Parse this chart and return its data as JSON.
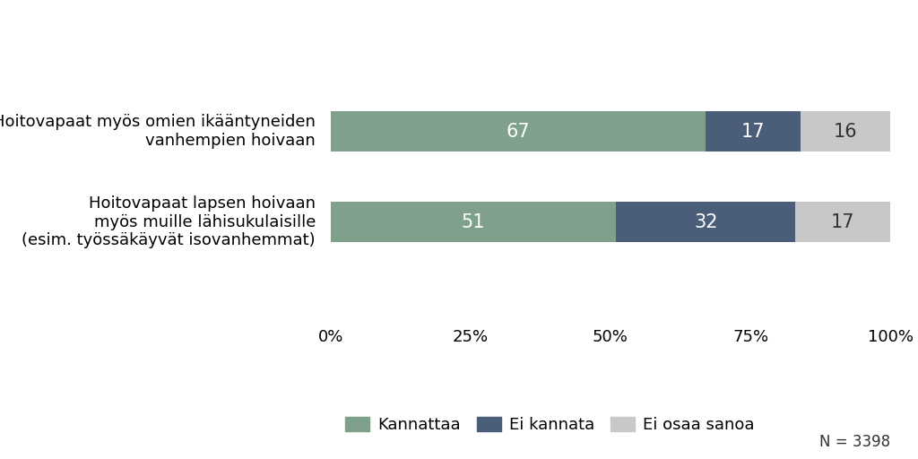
{
  "categories": [
    "Hoitovapaat myös omien ikääntyneiden\nvanhempien hoivaan",
    "Hoitovapaat lapsen hoivaan\nmyös muille lähisukulaisille\n(esim. työssäkäyvät isovanhemmat)"
  ],
  "series": [
    {
      "label": "Kannattaa",
      "values": [
        67,
        51
      ],
      "color": "#7fa08a"
    },
    {
      "label": "Ei kannata",
      "values": [
        17,
        32
      ],
      "color": "#4a5e7a"
    },
    {
      "label": "Ei osaa sanoa",
      "values": [
        16,
        17
      ],
      "color": "#c8c8c8"
    }
  ],
  "bar_labels_color_white": "#ffffff",
  "bar_labels_color_dark": "#333333",
  "xlabel_ticks": [
    0,
    25,
    50,
    75,
    100
  ],
  "xlabel_tick_labels": [
    "0%",
    "25%",
    "50%",
    "75%",
    "100%"
  ],
  "n_label": "N = 3398",
  "background_color": "#ffffff",
  "bar_height": 0.45,
  "label_fontsize": 15,
  "tick_fontsize": 13,
  "legend_fontsize": 13,
  "n_fontsize": 12,
  "category_fontsize": 13
}
